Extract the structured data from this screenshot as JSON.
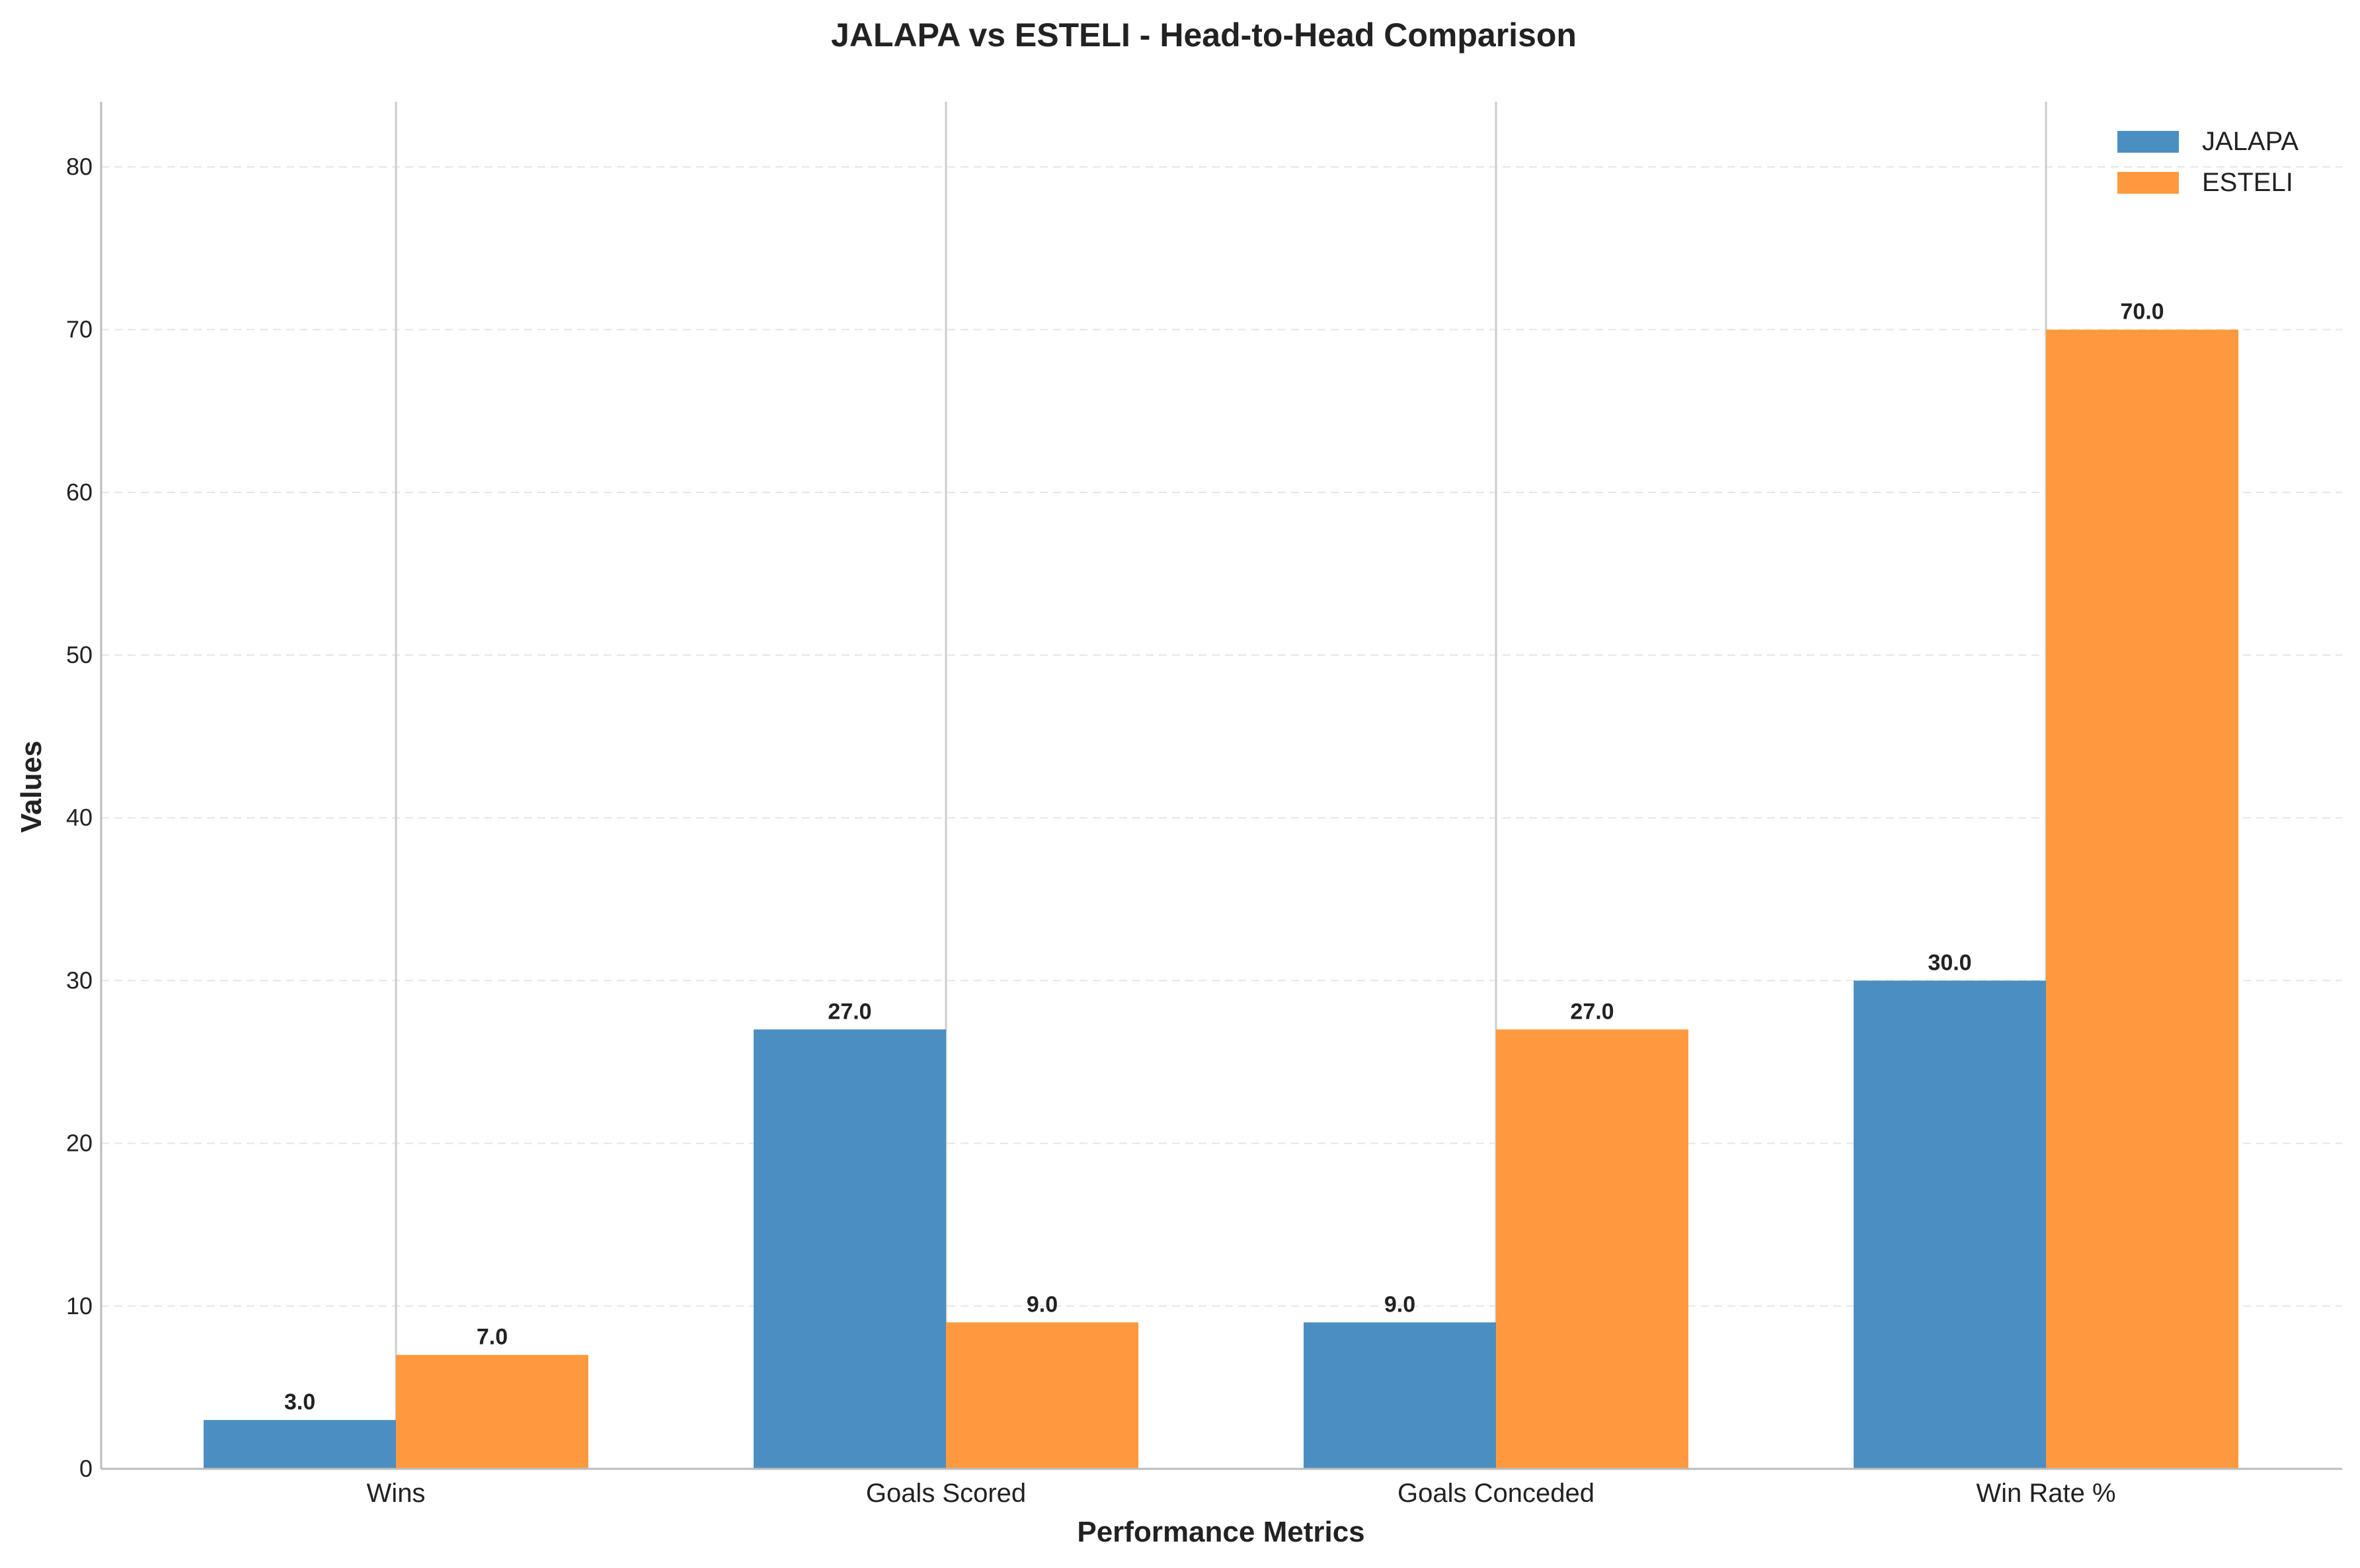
{
  "chart_data": {
    "type": "bar",
    "title": "JALAPA vs ESTELI - Head-to-Head Comparison",
    "xlabel": "Performance Metrics",
    "ylabel": "Values",
    "categories": [
      "Wins",
      "Goals Scored",
      "Goals Conceded",
      "Win Rate %"
    ],
    "series": [
      {
        "name": "JALAPA",
        "values": [
          3.0,
          27.0,
          9.0,
          30.0
        ],
        "color": "#4b8fc2"
      },
      {
        "name": "ESTELI",
        "values": [
          7.0,
          9.0,
          27.0,
          70.0
        ],
        "color": "#ff993f"
      }
    ],
    "ylim": [
      0,
      84
    ],
    "yticks": [
      0,
      10,
      20,
      30,
      40,
      50,
      60,
      70,
      80
    ],
    "value_labels": {
      "JALAPA": [
        "3.0",
        "27.0",
        "9.0",
        "30.0"
      ],
      "ESTELI": [
        "7.0",
        "9.0",
        "27.0",
        "70.0"
      ]
    },
    "grid": "y-dashed",
    "legend_position": "top-right"
  }
}
